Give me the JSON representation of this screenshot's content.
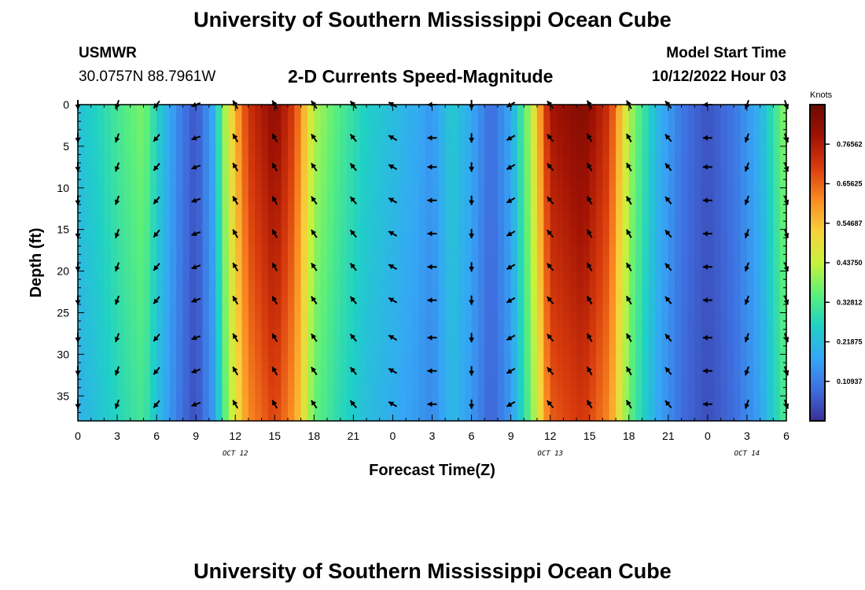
{
  "header": {
    "title": "University of Southern Mississippi Ocean Cube",
    "station": "USMWR",
    "coords": "30.0757N  88.7961W",
    "subtitle": "2-D Currents Speed-Magnitude",
    "model_start_label": "Model Start Time",
    "model_start_value": "10/12/2022 Hour 03"
  },
  "footer": {
    "title": "University of Southern Mississippi Ocean Cube"
  },
  "colors": {
    "ramp": [
      "#3a2f96",
      "#3f6fe0",
      "#35a7f5",
      "#1fd1c5",
      "#5cf07a",
      "#c8f23c",
      "#f7d13a",
      "#fb8a22",
      "#d93c0d",
      "#a01204",
      "#6b0a02"
    ]
  },
  "chart_data": {
    "type": "heatmap",
    "title": "2-D Currents Speed-Magnitude",
    "xlabel": "Forecast Time(Z)",
    "ylabel": "Depth (ft)",
    "x_tick_labels": [
      "0",
      "3",
      "6",
      "9",
      "12",
      "15",
      "18",
      "21",
      "0",
      "3",
      "6",
      "9",
      "12",
      "15",
      "18",
      "21",
      "0",
      "3",
      "6"
    ],
    "x_range_hours": [
      0,
      54
    ],
    "date_labels": [
      {
        "label": "OCT 12",
        "hour": 12
      },
      {
        "label": "OCT 13",
        "hour": 36
      },
      {
        "label": "OCT 14",
        "hour": 51
      }
    ],
    "y_tick_labels": [
      "0",
      "5",
      "10",
      "15",
      "20",
      "25",
      "30",
      "35"
    ],
    "y_range_ft": [
      0,
      38
    ],
    "colorbar": {
      "unit": "Knots",
      "range": [
        0,
        0.875
      ],
      "tick_labels": [
        "0.10937",
        "0.21875",
        "0.32812",
        "0.43750",
        "0.54687",
        "0.65625",
        "0.76562"
      ]
    },
    "time_profile_knots": [
      {
        "hour": 0,
        "speed": 0.23
      },
      {
        "hour": 1.5,
        "speed": 0.27
      },
      {
        "hour": 3,
        "speed": 0.32
      },
      {
        "hour": 5,
        "speed": 0.38
      },
      {
        "hour": 6.5,
        "speed": 0.22
      },
      {
        "hour": 8,
        "speed": 0.1
      },
      {
        "hour": 9,
        "speed": 0.05
      },
      {
        "hour": 10.3,
        "speed": 0.18
      },
      {
        "hour": 11.5,
        "speed": 0.48
      },
      {
        "hour": 13,
        "speed": 0.72
      },
      {
        "hour": 15,
        "speed": 0.82
      },
      {
        "hour": 16.5,
        "speed": 0.7
      },
      {
        "hour": 18,
        "speed": 0.42
      },
      {
        "hour": 20,
        "speed": 0.33
      },
      {
        "hour": 22,
        "speed": 0.26
      },
      {
        "hour": 24,
        "speed": 0.22
      },
      {
        "hour": 26,
        "speed": 0.18
      },
      {
        "hour": 27,
        "speed": 0.15
      },
      {
        "hour": 28.5,
        "speed": 0.25
      },
      {
        "hour": 30,
        "speed": 0.18
      },
      {
        "hour": 31.5,
        "speed": 0.08
      },
      {
        "hour": 33,
        "speed": 0.18
      },
      {
        "hour": 34.5,
        "speed": 0.42
      },
      {
        "hour": 36,
        "speed": 0.78
      },
      {
        "hour": 38.5,
        "speed": 0.84
      },
      {
        "hour": 40.5,
        "speed": 0.72
      },
      {
        "hour": 42,
        "speed": 0.42
      },
      {
        "hour": 44,
        "speed": 0.22
      },
      {
        "hour": 46,
        "speed": 0.1
      },
      {
        "hour": 48,
        "speed": 0.05
      },
      {
        "hour": 50,
        "speed": 0.1
      },
      {
        "hour": 52,
        "speed": 0.2
      },
      {
        "hour": 54,
        "speed": 0.4
      }
    ],
    "vector_depths_ft": [
      0,
      4,
      7.5,
      11.5,
      15.5,
      19.5,
      23.5,
      28,
      32,
      36
    ],
    "vector_directions_deg_by_hour": [
      {
        "hour": 0,
        "dir": 180
      },
      {
        "hour": 3,
        "dir": 200
      },
      {
        "hour": 6,
        "dir": 220
      },
      {
        "hour": 9,
        "dir": 250
      },
      {
        "hour": 12,
        "dir": 330
      },
      {
        "hour": 15,
        "dir": 330
      },
      {
        "hour": 18,
        "dir": 325
      },
      {
        "hour": 21,
        "dir": 320
      },
      {
        "hour": 24,
        "dir": 300
      },
      {
        "hour": 27,
        "dir": 270
      },
      {
        "hour": 30,
        "dir": 180
      },
      {
        "hour": 33,
        "dir": 240
      },
      {
        "hour": 36,
        "dir": 320
      },
      {
        "hour": 39,
        "dir": 330
      },
      {
        "hour": 42,
        "dir": 330
      },
      {
        "hour": 45,
        "dir": 320
      },
      {
        "hour": 48,
        "dir": 270
      },
      {
        "hour": 51,
        "dir": 200
      },
      {
        "hour": 54,
        "dir": 160
      }
    ]
  }
}
